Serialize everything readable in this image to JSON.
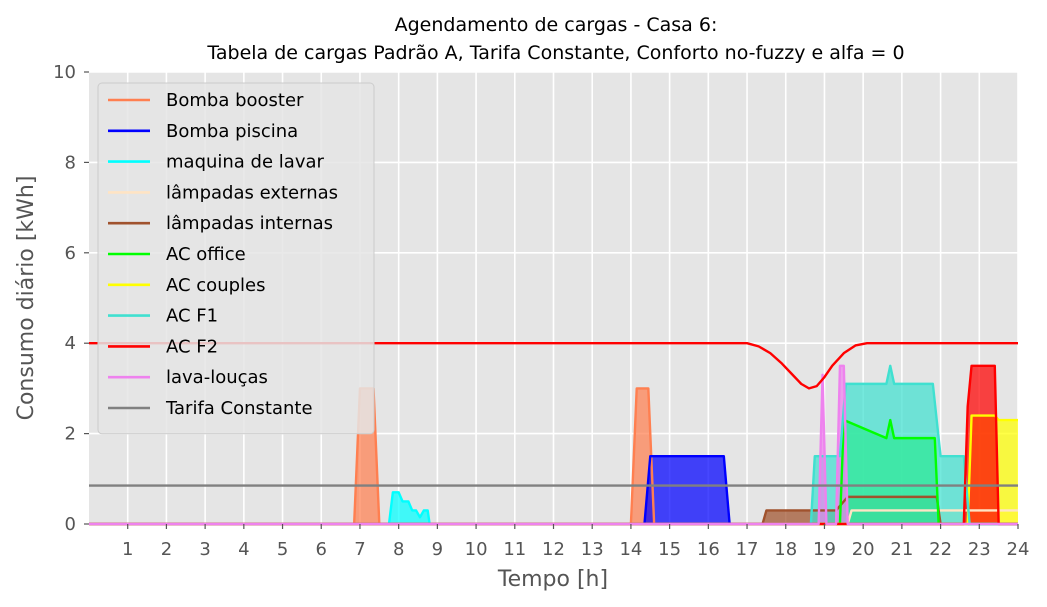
{
  "chart_data": {
    "type": "area",
    "title_line1": "Agendamento de cargas - Casa 6:",
    "title_line2": "Tabela de cargas Padrão A, Tarifa Constante, Conforto no-fuzzy e alfa = 0",
    "xlabel": "Tempo [h]",
    "ylabel": "Consumo diário [kWh]",
    "xlim": [
      0,
      24
    ],
    "ylim": [
      0,
      10
    ],
    "xticks": [
      "1",
      "2",
      "3",
      "4",
      "5",
      "6",
      "7",
      "8",
      "9",
      "10",
      "11",
      "12",
      "13",
      "14",
      "15",
      "16",
      "17",
      "18",
      "19",
      "20",
      "21",
      "22",
      "23",
      "24"
    ],
    "yticks": [
      "0",
      "2",
      "4",
      "6",
      "8",
      "10"
    ],
    "grid": true,
    "legend_position": "upper-left",
    "series": [
      {
        "name": "Bomba booster",
        "color": "#ff7f50",
        "fill": true,
        "x": [
          0,
          6.85,
          7.0,
          7.35,
          7.5,
          14.0,
          14.15,
          14.45,
          14.6,
          24
        ],
        "y": [
          0,
          0,
          3.0,
          3.0,
          0,
          0,
          3.0,
          3.0,
          0,
          0
        ]
      },
      {
        "name": "Bomba piscina",
        "color": "#0000ff",
        "fill": true,
        "x": [
          0,
          14.35,
          14.5,
          16.4,
          16.55,
          24
        ],
        "y": [
          0,
          0,
          1.5,
          1.5,
          0,
          0
        ]
      },
      {
        "name": "maquina de lavar",
        "color": "#00ffff",
        "fill": true,
        "x": [
          0,
          7.75,
          7.85,
          8.0,
          8.1,
          8.25,
          8.35,
          8.45,
          8.55,
          8.65,
          8.75,
          8.8,
          24
        ],
        "y": [
          0,
          0,
          0.7,
          0.7,
          0.5,
          0.5,
          0.3,
          0.3,
          0.15,
          0.3,
          0.3,
          0,
          0
        ]
      },
      {
        "name": "lâmpadas externas",
        "color": "#ffe4c4",
        "fill": true,
        "x": [
          0,
          19.6,
          19.7,
          24
        ],
        "y": [
          0,
          0,
          0.3,
          0.3
        ]
      },
      {
        "name": "lâmpadas internas",
        "color": "#a0522d",
        "fill": true,
        "x": [
          0,
          17.4,
          17.5,
          18.65,
          19.3,
          19.6,
          21.9,
          22.0,
          24
        ],
        "y": [
          0,
          0,
          0.3,
          0.3,
          0.3,
          0.6,
          0.6,
          0,
          0
        ]
      },
      {
        "name": "AC office",
        "color": "#00ff00",
        "fill": true,
        "x": [
          0,
          19.4,
          19.5,
          20.6,
          20.7,
          20.8,
          21.85,
          21.95,
          24
        ],
        "y": [
          0,
          0,
          2.3,
          1.9,
          2.3,
          1.9,
          1.9,
          0,
          0
        ]
      },
      {
        "name": "AC couples",
        "color": "#ffff00",
        "fill": true,
        "x": [
          0,
          22.7,
          22.8,
          23.4,
          23.5,
          24
        ],
        "y": [
          0,
          0,
          2.4,
          2.4,
          2.3,
          2.3
        ]
      },
      {
        "name": "AC F1",
        "color": "#40e0d0",
        "fill": true,
        "x": [
          0,
          18.65,
          18.75,
          19.4,
          19.55,
          20.6,
          20.7,
          20.8,
          21.8,
          22.0,
          22.6,
          22.75,
          24
        ],
        "y": [
          0,
          0,
          1.5,
          1.5,
          3.1,
          3.1,
          3.5,
          3.1,
          3.1,
          1.5,
          1.5,
          0,
          0
        ]
      },
      {
        "name": "AC F2",
        "color": "#ff0000",
        "fill": true,
        "x": [
          0,
          22.6,
          22.7,
          22.8,
          23.4,
          23.5,
          24
        ],
        "y": [
          0,
          0,
          2.6,
          3.5,
          3.5,
          0,
          0
        ]
      },
      {
        "name": "lava-louças",
        "color": "#ee82ee",
        "fill": true,
        "x": [
          0,
          18.85,
          18.95,
          19.05,
          19.3,
          19.4,
          19.5,
          19.6,
          24
        ],
        "y": [
          0,
          0,
          3.3,
          0,
          0,
          3.5,
          3.5,
          0,
          0
        ]
      },
      {
        "name": "Tarifa Constante",
        "color": "#808080",
        "fill": false,
        "x": [
          0,
          24
        ],
        "y": [
          0.85,
          0.85
        ]
      },
      {
        "name": "",
        "color": "#ff0000",
        "fill": false,
        "x": [
          0,
          17.0,
          17.3,
          17.6,
          17.9,
          18.2,
          18.4,
          18.6,
          18.8,
          19.0,
          19.2,
          19.5,
          19.8,
          20.1,
          24
        ],
        "y": [
          4.0,
          4.0,
          3.93,
          3.78,
          3.55,
          3.28,
          3.1,
          3.0,
          3.05,
          3.25,
          3.5,
          3.78,
          3.95,
          4.0,
          4.0
        ]
      }
    ]
  }
}
